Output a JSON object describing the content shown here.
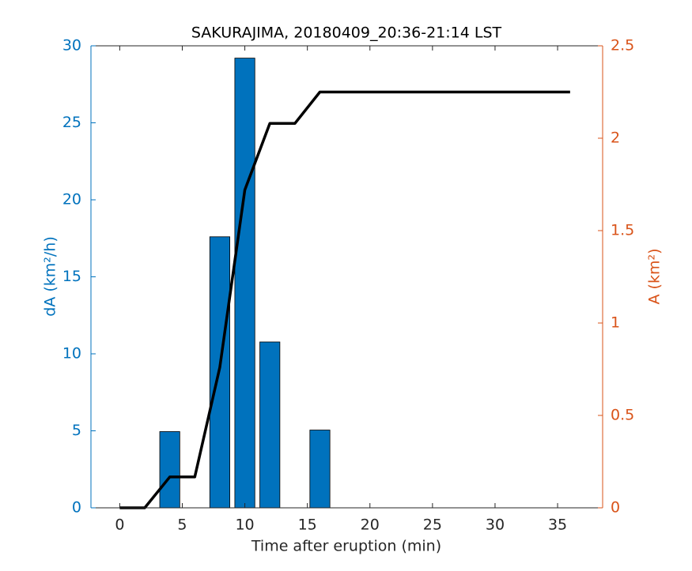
{
  "chart_data": {
    "type": "bar-line",
    "title": "SAKURAJIMA, 20180409_20:36-21:14 LST",
    "x_label": "Time after eruption (min)",
    "y_label": "dA (km²/h)",
    "y2_label": "A (km²)",
    "xlim": [
      -2.3,
      38.6
    ],
    "xticks": [
      0,
      5,
      10,
      15,
      20,
      25,
      30,
      35
    ],
    "ylim": [
      0,
      30
    ],
    "yticks": [
      0,
      5,
      10,
      15,
      20,
      25,
      30
    ],
    "y2lim": [
      0,
      2.5
    ],
    "y2ticks": [
      0,
      0.5,
      1,
      1.5,
      2,
      2.5
    ],
    "y_color": "#0072bd",
    "y2_color": "#d95319",
    "series": [
      {
        "type": "bar",
        "color": "#0072bd",
        "x": [
          4,
          8,
          10,
          12,
          16
        ],
        "values": [
          4.95,
          17.6,
          29.2,
          10.77,
          5.05
        ]
      },
      {
        "type": "line",
        "axis": "y2",
        "color": "#000000",
        "x": [
          0,
          2,
          4,
          6,
          8,
          10,
          12,
          14,
          16,
          36
        ],
        "values": [
          0,
          0,
          0.167,
          0.167,
          0.76,
          1.72,
          2.08,
          2.08,
          2.25,
          2.25
        ]
      }
    ]
  }
}
